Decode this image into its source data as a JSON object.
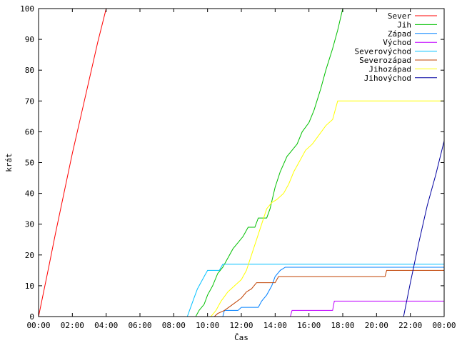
{
  "chart_data": {
    "type": "line",
    "title": "",
    "xlabel": "Čas",
    "ylabel": "krát",
    "x_unit": "hours",
    "xlim": [
      0,
      24
    ],
    "ylim": [
      0,
      100
    ],
    "x_ticks": [
      0,
      2,
      4,
      6,
      8,
      10,
      12,
      14,
      16,
      18,
      20,
      22,
      24
    ],
    "x_tick_labels": [
      "00:00",
      "02:00",
      "04:00",
      "06:00",
      "08:00",
      "10:00",
      "12:00",
      "14:00",
      "16:00",
      "18:00",
      "20:00",
      "22:00",
      "00:00"
    ],
    "y_ticks": [
      0,
      10,
      20,
      30,
      40,
      50,
      60,
      70,
      80,
      90,
      100
    ],
    "y_tick_labels": [
      "0",
      "10",
      "20",
      "30",
      "40",
      "50",
      "60",
      "70",
      "80",
      "90",
      "100"
    ],
    "grid": false,
    "legend_position": "top-right",
    "series": [
      {
        "name": "Sever",
        "color": "#ff0000",
        "points": [
          [
            0,
            0
          ],
          [
            0.3,
            8
          ],
          [
            0.6,
            16
          ],
          [
            1.0,
            27
          ],
          [
            1.5,
            40
          ],
          [
            2.0,
            53
          ],
          [
            2.5,
            65
          ],
          [
            3.0,
            77
          ],
          [
            3.5,
            89
          ],
          [
            4.0,
            100
          ]
        ]
      },
      {
        "name": "Jih",
        "color": "#00c000",
        "points": [
          [
            9.3,
            0
          ],
          [
            9.5,
            2
          ],
          [
            9.8,
            4
          ],
          [
            10.0,
            7
          ],
          [
            10.3,
            10
          ],
          [
            10.6,
            14
          ],
          [
            10.9,
            16
          ],
          [
            11.2,
            19
          ],
          [
            11.5,
            22
          ],
          [
            11.8,
            24
          ],
          [
            12.1,
            26
          ],
          [
            12.4,
            29
          ],
          [
            12.8,
            29
          ],
          [
            13.0,
            32
          ],
          [
            13.5,
            32
          ],
          [
            13.7,
            35
          ],
          [
            14.0,
            42
          ],
          [
            14.3,
            47
          ],
          [
            14.7,
            52
          ],
          [
            15.0,
            54
          ],
          [
            15.3,
            56
          ],
          [
            15.6,
            60
          ],
          [
            16.0,
            63
          ],
          [
            16.3,
            67
          ],
          [
            16.7,
            74
          ],
          [
            17.0,
            80
          ],
          [
            17.4,
            87
          ],
          [
            17.7,
            93
          ],
          [
            18.0,
            100
          ]
        ]
      },
      {
        "name": "Západ",
        "color": "#0080ff",
        "points": [
          [
            10.6,
            0
          ],
          [
            10.9,
            0
          ],
          [
            11.0,
            2
          ],
          [
            11.8,
            2
          ],
          [
            12.0,
            3
          ],
          [
            13.0,
            3
          ],
          [
            13.2,
            5
          ],
          [
            13.5,
            7
          ],
          [
            13.8,
            10
          ],
          [
            14.0,
            13
          ],
          [
            14.3,
            15
          ],
          [
            14.6,
            16
          ],
          [
            24.0,
            16
          ]
        ]
      },
      {
        "name": "Východ",
        "color": "#c000ff",
        "points": [
          [
            14.9,
            0
          ],
          [
            15.0,
            2
          ],
          [
            17.4,
            2
          ],
          [
            17.5,
            5
          ],
          [
            24.0,
            5
          ]
        ]
      },
      {
        "name": "Severovýchod",
        "color": "#00c0ff",
        "points": [
          [
            8.8,
            0
          ],
          [
            9.0,
            3
          ],
          [
            9.2,
            6
          ],
          [
            9.4,
            9
          ],
          [
            9.6,
            11
          ],
          [
            9.8,
            13
          ],
          [
            10.0,
            15
          ],
          [
            10.7,
            15
          ],
          [
            10.9,
            17
          ],
          [
            24.0,
            17
          ]
        ]
      },
      {
        "name": "Severozápad",
        "color": "#c04000",
        "points": [
          [
            10.4,
            0
          ],
          [
            10.6,
            1
          ],
          [
            11.0,
            2
          ],
          [
            11.5,
            4
          ],
          [
            12.0,
            6
          ],
          [
            12.3,
            8
          ],
          [
            12.6,
            9
          ],
          [
            12.9,
            11
          ],
          [
            14.0,
            11
          ],
          [
            14.2,
            13
          ],
          [
            20.5,
            13
          ],
          [
            20.6,
            15
          ],
          [
            24.0,
            15
          ]
        ]
      },
      {
        "name": "Jihozápad",
        "color": "#ffff00",
        "points": [
          [
            10.2,
            0
          ],
          [
            10.5,
            2
          ],
          [
            10.8,
            5
          ],
          [
            11.2,
            8
          ],
          [
            11.6,
            10
          ],
          [
            12.0,
            12
          ],
          [
            12.3,
            15
          ],
          [
            12.6,
            20
          ],
          [
            12.9,
            25
          ],
          [
            13.2,
            30
          ],
          [
            13.5,
            35
          ],
          [
            13.8,
            37
          ],
          [
            14.1,
            38
          ],
          [
            14.5,
            40
          ],
          [
            14.8,
            43
          ],
          [
            15.1,
            47
          ],
          [
            15.4,
            50
          ],
          [
            15.8,
            54
          ],
          [
            16.2,
            56
          ],
          [
            16.6,
            59
          ],
          [
            17.0,
            62
          ],
          [
            17.4,
            64
          ],
          [
            17.7,
            70
          ],
          [
            24.0,
            70
          ]
        ]
      },
      {
        "name": "Jihovýchod",
        "color": "#0000a0",
        "points": [
          [
            21.6,
            0
          ],
          [
            22.0,
            11
          ],
          [
            22.5,
            24
          ],
          [
            23.0,
            36
          ],
          [
            23.5,
            46
          ],
          [
            24.0,
            57
          ]
        ]
      }
    ]
  }
}
